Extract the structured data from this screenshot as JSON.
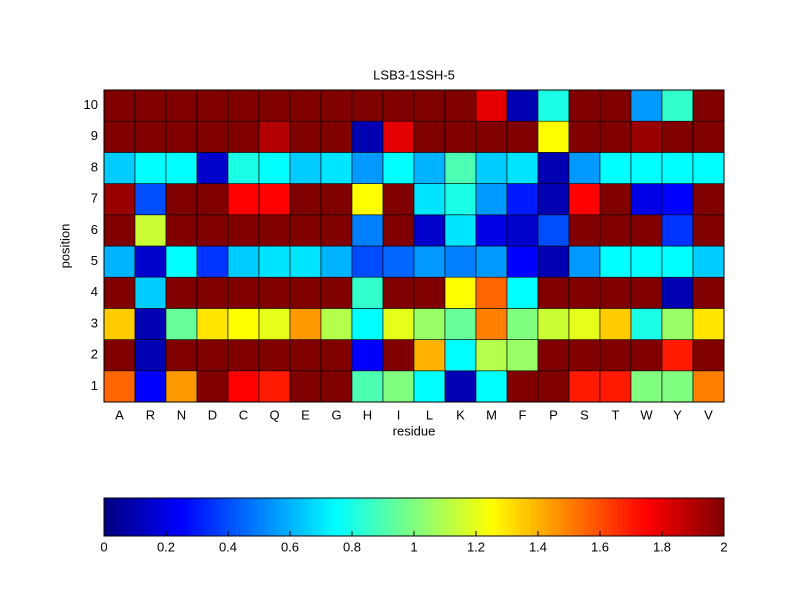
{
  "chart_data": {
    "type": "heatmap",
    "title": "LSB3-1SSH-5",
    "xlabel": "residue",
    "ylabel": "position",
    "x": [
      "A",
      "R",
      "N",
      "D",
      "C",
      "Q",
      "E",
      "G",
      "H",
      "I",
      "L",
      "K",
      "M",
      "F",
      "P",
      "S",
      "T",
      "W",
      "Y",
      "V"
    ],
    "y": [
      1,
      2,
      3,
      4,
      5,
      6,
      7,
      8,
      9,
      10
    ],
    "values": [
      [
        1.55,
        0.25,
        1.45,
        2,
        1.75,
        1.7,
        2,
        2,
        0.9,
        1.0,
        0.75,
        0.1,
        0.75,
        2,
        2,
        1.7,
        1.7,
        1.0,
        1.0,
        1.5
      ],
      [
        2,
        0.1,
        2,
        2,
        2,
        2,
        2,
        2,
        0.25,
        2,
        1.4,
        0.75,
        1.1,
        1.05,
        2,
        2,
        2,
        2,
        1.7,
        2
      ],
      [
        1.35,
        0.1,
        0.95,
        1.3,
        1.25,
        1.2,
        1.45,
        1.1,
        0.75,
        1.2,
        1.05,
        0.95,
        1.5,
        1.0,
        1.15,
        1.2,
        1.35,
        0.8,
        1.05,
        1.3
      ],
      [
        2,
        0.65,
        2,
        2,
        2,
        2,
        2,
        2,
        0.85,
        2,
        2,
        1.25,
        1.55,
        0.75,
        2,
        2,
        2,
        2,
        0.1,
        2
      ],
      [
        0.6,
        0.15,
        0.75,
        0.35,
        0.65,
        0.7,
        0.7,
        0.6,
        0.4,
        0.45,
        0.55,
        0.5,
        0.55,
        0.25,
        0.1,
        0.55,
        0.75,
        0.75,
        0.75,
        0.65
      ],
      [
        2,
        1.15,
        2,
        2,
        2,
        2,
        2,
        2,
        0.5,
        2,
        0.15,
        0.7,
        0.2,
        0.15,
        0.4,
        2,
        2,
        2,
        0.35,
        2
      ],
      [
        1.95,
        0.4,
        2,
        2,
        1.75,
        1.75,
        2,
        2,
        1.25,
        2,
        0.7,
        0.8,
        0.55,
        0.3,
        0.1,
        1.75,
        2,
        0.2,
        0.25,
        2
      ],
      [
        0.65,
        0.75,
        0.75,
        0.15,
        0.8,
        0.75,
        0.65,
        0.7,
        0.55,
        0.75,
        0.6,
        0.9,
        0.65,
        0.7,
        0.1,
        0.55,
        0.75,
        0.75,
        0.75,
        0.75
      ],
      [
        2,
        2,
        2,
        2,
        2,
        1.9,
        2,
        2,
        0.1,
        1.8,
        2,
        2,
        2,
        2,
        1.25,
        2,
        2,
        1.95,
        2,
        2
      ],
      [
        2,
        2,
        2,
        2,
        2,
        2,
        2,
        2,
        2,
        2,
        2,
        2,
        1.8,
        0.1,
        0.8,
        2,
        2,
        0.55,
        0.85,
        2
      ]
    ],
    "colormap": "jet",
    "clim": [
      0,
      2
    ],
    "cticks": [
      0,
      0.2,
      0.4,
      0.6,
      0.8,
      1,
      1.2,
      1.4,
      1.6,
      1.8,
      2
    ]
  }
}
